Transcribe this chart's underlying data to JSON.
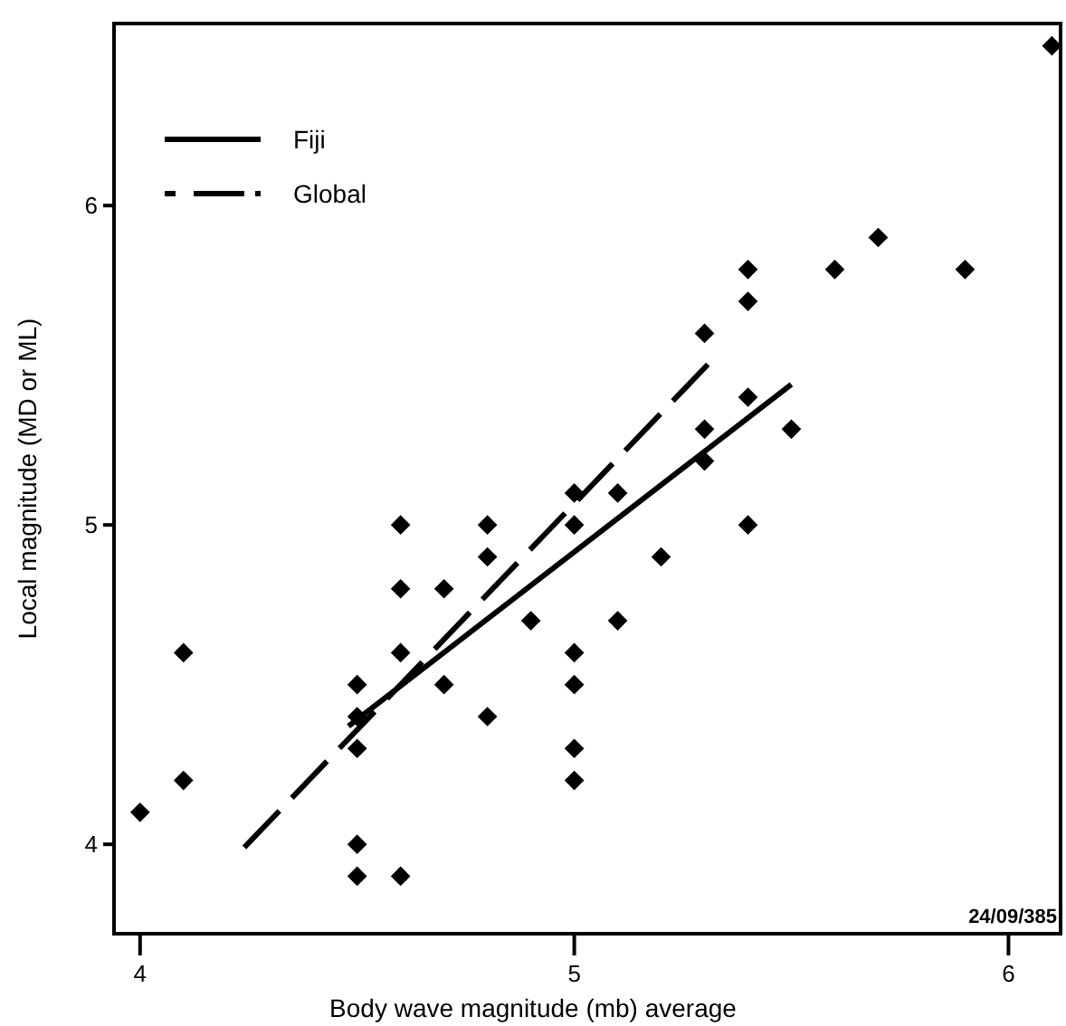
{
  "chart_data": {
    "type": "scatter",
    "xlabel": "Body wave magnitude (mb) average",
    "ylabel": "Local magnitude (MD or ML)",
    "xlim": [
      3.94,
      6.12
    ],
    "ylim": [
      3.72,
      6.57
    ],
    "xticks": [
      4,
      5,
      6
    ],
    "yticks": [
      4,
      5,
      6
    ],
    "grid": false,
    "legend": "top left",
    "marker": "diamond",
    "annotations": [
      "24/09/385"
    ],
    "series": [
      {
        "type": "scatter",
        "color": "#000000",
        "x": [
          4.0,
          4.1,
          4.1,
          4.5,
          4.5,
          4.5,
          4.5,
          4.5,
          4.6,
          4.6,
          4.6,
          4.6,
          4.7,
          4.7,
          4.8,
          4.8,
          4.8,
          4.9,
          5.0,
          5.0,
          5.0,
          5.0,
          5.0,
          5.0,
          5.1,
          5.1,
          5.2,
          5.3,
          5.3,
          5.3,
          5.4,
          5.4,
          5.4,
          5.4,
          5.5,
          5.6,
          5.7,
          5.9,
          6.1
        ],
        "values": [
          4.1,
          4.6,
          4.2,
          4.5,
          4.4,
          4.3,
          4.0,
          3.9,
          5.0,
          4.8,
          4.6,
          3.9,
          4.8,
          4.5,
          5.0,
          4.9,
          4.4,
          4.7,
          5.1,
          5.0,
          4.6,
          4.5,
          4.3,
          4.2,
          5.1,
          4.7,
          4.9,
          5.6,
          5.3,
          5.2,
          5.8,
          5.7,
          5.4,
          5.0,
          5.3,
          5.8,
          5.9,
          5.8,
          6.5
        ]
      },
      {
        "type": "line",
        "name": "Fiji",
        "color": "#000000",
        "line_style": "solid",
        "marker": "none",
        "x": [
          4.48,
          5.5
        ],
        "values": [
          4.37,
          5.44
        ]
      },
      {
        "type": "line",
        "name": "Global",
        "color": "#000000",
        "line_style": "dashed",
        "marker": "none",
        "x": [
          4.24,
          5.32
        ],
        "values": [
          3.99,
          5.52
        ]
      }
    ]
  }
}
